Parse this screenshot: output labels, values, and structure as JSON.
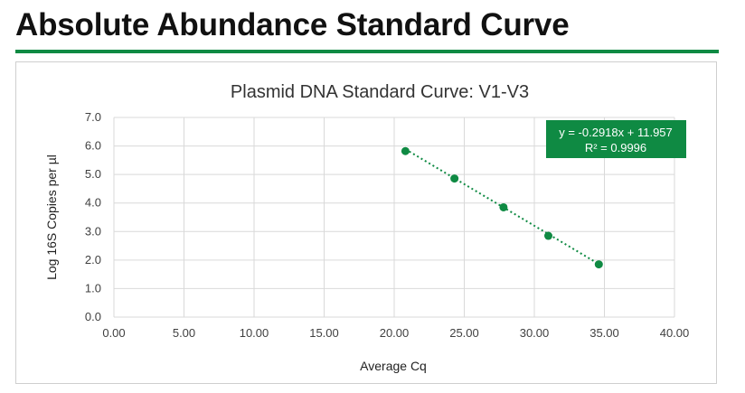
{
  "page": {
    "title": "Absolute Abundance Standard Curve"
  },
  "colors": {
    "accent": "#0f8a43",
    "series": "#0f8a43",
    "grid": "#d9d9d9",
    "text": "#404040"
  },
  "chart_data": {
    "type": "scatter",
    "title": "Plasmid DNA Standard Curve: V1-V3",
    "xlabel": "Average Cq",
    "ylabel": "Log 16S Copies per µl",
    "xlim": [
      0,
      40
    ],
    "ylim": [
      0,
      7
    ],
    "x_ticks": [
      "0.00",
      "5.00",
      "10.00",
      "15.00",
      "20.00",
      "25.00",
      "30.00",
      "35.00",
      "40.00"
    ],
    "y_ticks": [
      "0.0",
      "1.0",
      "2.0",
      "3.0",
      "4.0",
      "5.0",
      "6.0",
      "7.0"
    ],
    "grid": true,
    "series": [
      {
        "x": [
          20.8,
          24.3,
          27.8,
          31.0,
          34.6
        ],
        "y": [
          5.82,
          4.86,
          3.85,
          2.85,
          1.85
        ]
      }
    ],
    "trendline": {
      "type": "linear",
      "style": "dotted",
      "slope": -0.2918,
      "intercept": 11.957
    },
    "annotation": {
      "equation": "y = -0.2918x + 11.957",
      "r_squared": "R² = 0.9996",
      "position": "top-right"
    }
  }
}
